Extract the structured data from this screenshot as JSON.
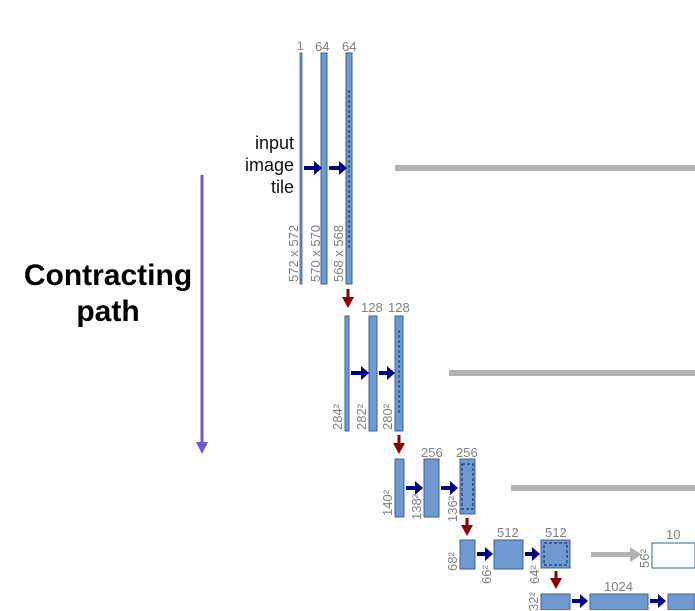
{
  "title": {
    "line1": "Contracting",
    "line2": "path"
  },
  "input_label": {
    "line1": "input",
    "line2": "image",
    "line3": "tile"
  },
  "channels": {
    "l1_in": "1",
    "l1_c1": "64",
    "l1_c2": "64",
    "l2_c1": "128",
    "l2_c2": "128",
    "l3_c1": "256",
    "l3_c2": "256",
    "l4_c1": "512",
    "l4_c2": "512",
    "l4_up": "10",
    "l5_c1": "1024"
  },
  "sizes": {
    "l1_in": "572 x 572",
    "l1_c1": "570 x 570",
    "l1_c2": "568 x 568",
    "l2_in": "284²",
    "l2_c1": "282²",
    "l2_c2": "280²",
    "l3_in": "140²",
    "l3_c1": "138²",
    "l3_c2": "136²",
    "l4_in": "68²",
    "l4_c1": "66²",
    "l4_c2": "64²",
    "l4_up": "56²",
    "l5_in": "32²"
  },
  "colors": {
    "block_fill": "#6f99d0",
    "block_stroke": "#3d5f92",
    "conv_arrow": "#000080",
    "pool_arrow": "#8b0000",
    "copy_arrow": "#b3b3b3",
    "path_arrow": "#6a5acd"
  }
}
